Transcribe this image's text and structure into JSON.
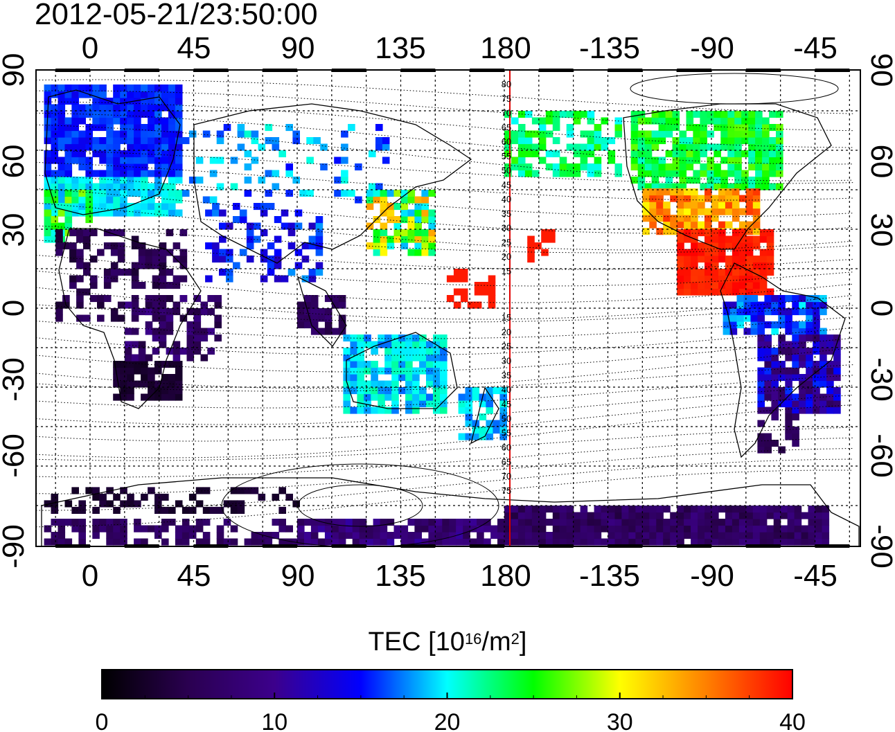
{
  "title": "2012-05-21/23:50:00",
  "colorbar": {
    "title_prefix": "TEC  [10",
    "title_exp1": "16",
    "title_mid": "/m",
    "title_exp2": "2",
    "title_suffix": "]",
    "min": 0,
    "max": 40,
    "ticks": [
      0,
      10,
      20,
      30,
      40
    ],
    "colors": [
      "#000000",
      "#2a0050",
      "#3c008c",
      "#0000ff",
      "#00ffff",
      "#00ff00",
      "#ffff00",
      "#ff8000",
      "#ff0000"
    ]
  },
  "axes": {
    "lon_ticks": [
      "0",
      "45",
      "90",
      "135",
      "180",
      "-135",
      "-90",
      "-45"
    ],
    "lat_ticks": [
      "90",
      "60",
      "30",
      "0",
      "-30",
      "-60",
      "-90"
    ],
    "meridian_marker_lon": 180,
    "line_labels_north": [
      "80",
      "75",
      "70",
      "65",
      "60",
      "55",
      "50",
      "45",
      "40",
      "35",
      "30",
      "25",
      "20",
      "15"
    ],
    "line_labels_south": [
      "15",
      "20",
      "25",
      "30",
      "35",
      "40",
      "45",
      "50",
      "55",
      "60",
      "65",
      "70",
      "75"
    ]
  }
}
